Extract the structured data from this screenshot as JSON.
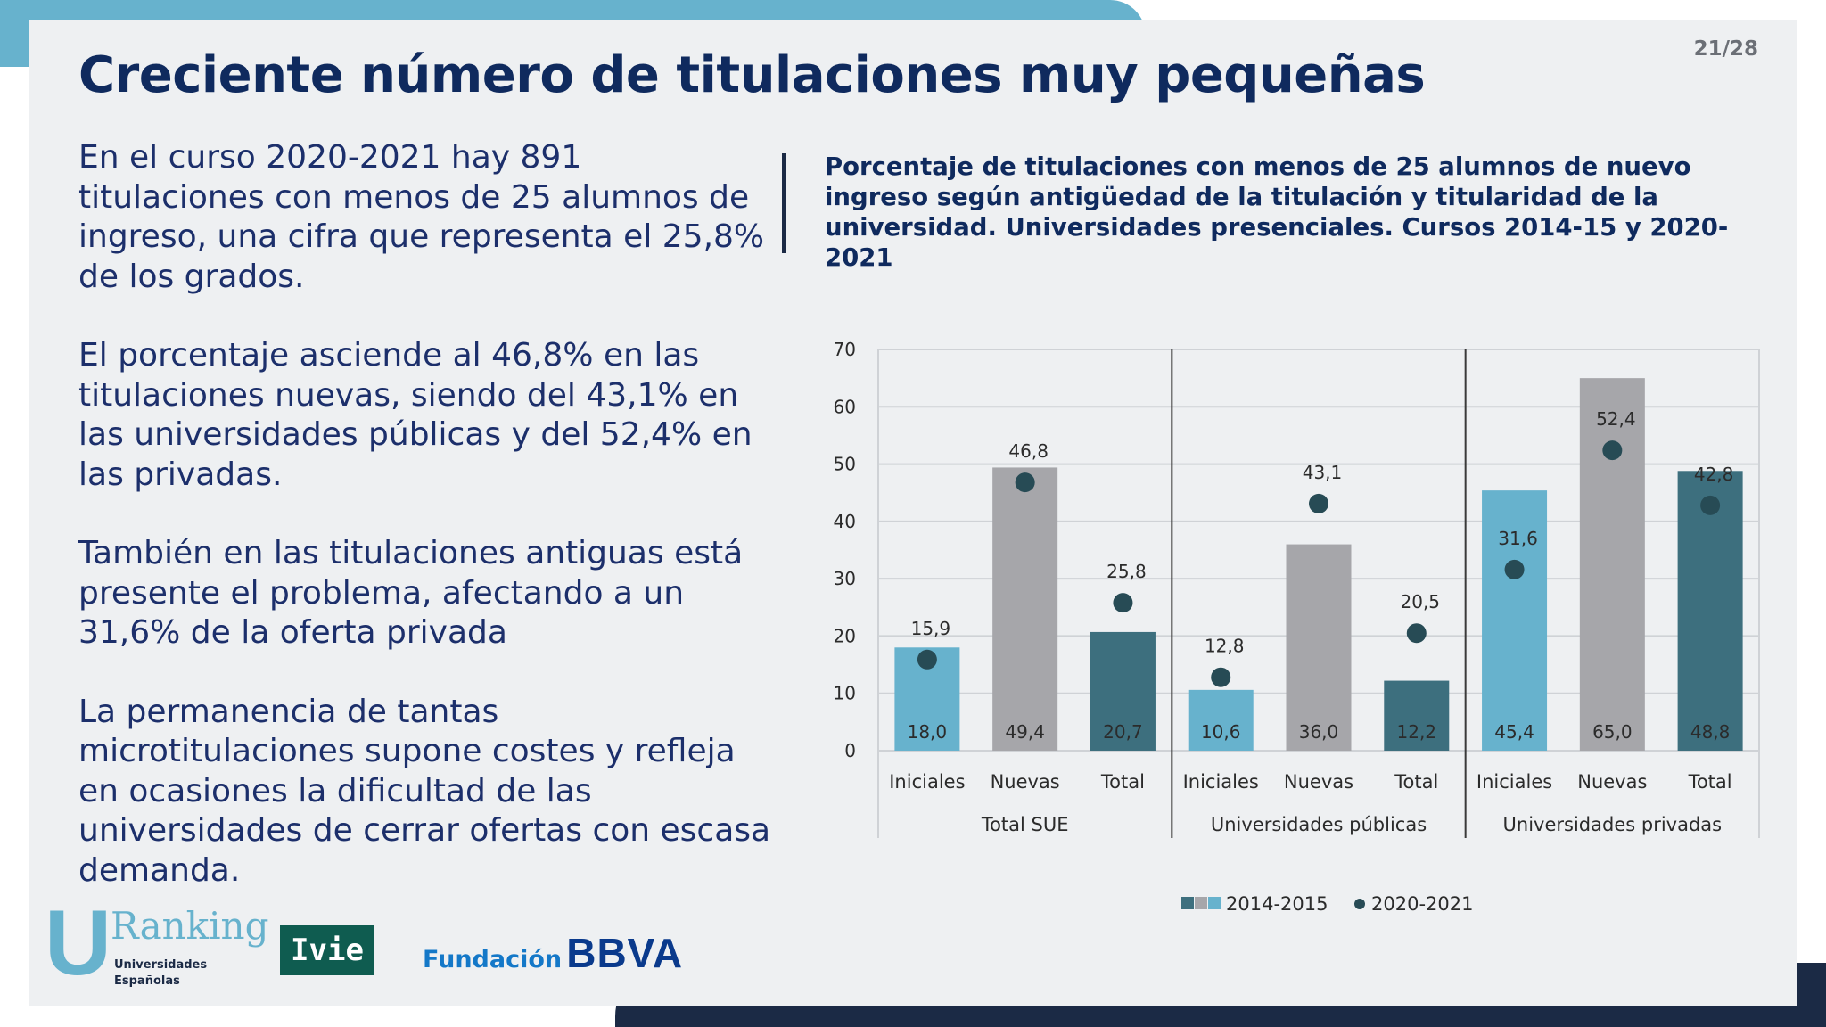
{
  "page_number": "21/28",
  "title": "Creciente número de titulaciones muy pequeñas",
  "paragraphs": [
    "En el curso 2020-2021 hay 891 titulaciones con menos de 25 alumnos de ingreso, una cifra que representa el 25,8% de los grados.",
    "El porcentaje asciende al 46,8% en las titulaciones nuevas, siendo del 43,1% en las universidades públicas y del 52,4% en las privadas.",
    "También en las titulaciones antiguas está presente el problema, afectando a un 31,6% de la oferta privada",
    "La permanencia de tantas microtitulaciones supone costes y refleja en ocasiones la dificultad de las universidades de cerrar ofertas con escasa demanda."
  ],
  "logos": {
    "ranking": {
      "letter": "U",
      "word": "Ranking",
      "subtitle": "Universidades\nEspañolas"
    },
    "ivie": "Ivie",
    "bbva": {
      "prefix": "Fundación",
      "name": "BBVA"
    }
  },
  "colors": {
    "brand_blue": "#0f2a5e",
    "accent_light_blue": "#67b2cd",
    "bar_light_blue": "#67b2cd",
    "bar_gray": "#a6a6aa",
    "bar_dark_teal": "#3d6f7e",
    "dot": "#274b55"
  },
  "chart_data": {
    "type": "bar",
    "title": "Porcentaje de titulaciones con menos de 25 alumnos de nuevo ingreso según antigüedad de la titulación y titularidad de la universidad. Universidades presenciales. Cursos 2014-15 y 2020-2021",
    "ylim": [
      0,
      70
    ],
    "yticks": [
      0,
      10,
      20,
      30,
      40,
      50,
      60,
      70
    ],
    "grid": true,
    "legend_position": "bottom",
    "groups": [
      "Total SUE",
      "Universidades públicas",
      "Universidades privadas"
    ],
    "categories": [
      "Iniciales",
      "Nuevas",
      "Total",
      "Iniciales",
      "Nuevas",
      "Total",
      "Iniciales",
      "Nuevas",
      "Total"
    ],
    "bar_labels": [
      "18,0",
      "49,4",
      "20,7",
      "10,6",
      "36,0",
      "12,2",
      "45,4",
      "65,0",
      "48,8"
    ],
    "dot_labels": [
      "15,9",
      "46,8",
      "25,8",
      "12,8",
      "43,1",
      "20,5",
      "31,6",
      "52,4",
      "42,8"
    ],
    "series": [
      {
        "name": "2014-2015",
        "kind": "bar",
        "values": [
          18.0,
          49.4,
          20.7,
          10.6,
          36.0,
          12.2,
          45.4,
          65.0,
          48.8
        ]
      },
      {
        "name": "2020-2021",
        "kind": "dot",
        "values": [
          15.9,
          46.8,
          25.8,
          12.8,
          43.1,
          20.5,
          31.6,
          52.4,
          42.8
        ]
      }
    ]
  }
}
